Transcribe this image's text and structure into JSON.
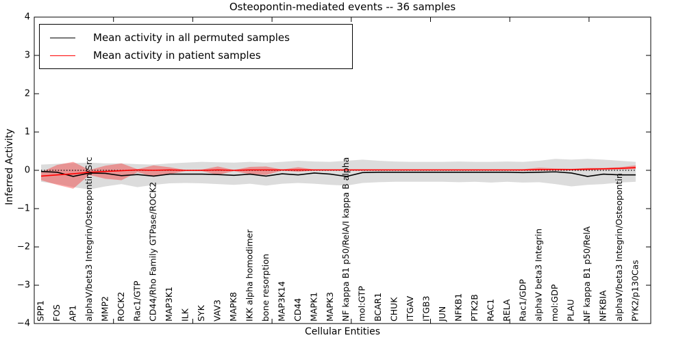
{
  "figure": {
    "title": "Osteopontin-mediated events -- 36 samples",
    "xlabel": "Cellular Entities",
    "ylabel": "Inferred Activity"
  },
  "legend": {
    "entries": [
      {
        "label": "Mean activity in all permuted samples",
        "color": "#000000"
      },
      {
        "label": "Mean activity in patient samples",
        "color": "#ff0000"
      }
    ],
    "position": "upper left"
  },
  "colors": {
    "permuted_line": "#000000",
    "patient_line": "#ff0000",
    "permuted_band": "rgba(128,128,128,0.28)",
    "patient_band": "rgba(255,0,0,0.33)",
    "zero_line": "#000000",
    "background": "#ffffff"
  },
  "chart_data": {
    "type": "line",
    "title": "Osteopontin-mediated events -- 36 samples",
    "xlabel": "Cellular Entities",
    "ylabel": "Inferred Activity",
    "ylim": [
      -4,
      4
    ],
    "yticks": [
      4,
      3,
      2,
      1,
      0,
      -1,
      -2,
      -3,
      -4
    ],
    "grid": false,
    "legend_position": "upper left",
    "zero_reference_line": {
      "value": 0,
      "style": "dotted",
      "color": "#000000"
    },
    "categories": [
      "SPP1",
      "FOS",
      "AP1",
      "alphaV/beta3 Integrin/Osteopontin/Src",
      "MMP2",
      "ROCK2",
      "Rac1/GTP",
      "CD44/Rho Family GTPase/ROCK2",
      "MAP3K1",
      "ILK",
      "SYK",
      "VAV3",
      "MAPK8",
      "IKK alpha homodimer",
      "bone resorption",
      "MAP3K14",
      "CD44",
      "MAPK1",
      "MAPK3",
      "NF kappa B1 p50/RelA/I kappa B alpha",
      "mol:GTP",
      "BCAR1",
      "CHUK",
      "ITGAV",
      "ITGB3",
      "JUN",
      "NFKB1",
      "PTK2B",
      "RAC1",
      "RELA",
      "Rac1/GDP",
      "alphaV beta3 Integrin",
      "mol:GDP",
      "PLAU",
      "NF kappa B1 p50/RelA",
      "NFKBIA",
      "alphaV/beta3 Integrin/Osteopontin",
      "PYK2/p130Cas"
    ],
    "series": [
      {
        "name": "Mean activity in all permuted samples",
        "color": "#000000",
        "style": "solid",
        "values": [
          -0.03,
          -0.05,
          -0.16,
          -0.07,
          -0.08,
          -0.14,
          -0.11,
          -0.15,
          -0.1,
          -0.1,
          -0.1,
          -0.11,
          -0.13,
          -0.1,
          -0.15,
          -0.09,
          -0.12,
          -0.07,
          -0.1,
          -0.16,
          -0.06,
          -0.05,
          -0.05,
          -0.05,
          -0.05,
          -0.05,
          -0.05,
          -0.05,
          -0.05,
          -0.05,
          -0.06,
          -0.05,
          -0.04,
          -0.07,
          -0.16,
          -0.1,
          -0.12,
          -0.12
        ]
      },
      {
        "name": "Mean activity in patient samples",
        "color": "#ff0000",
        "style": "solid",
        "values": [
          -0.15,
          -0.12,
          -0.09,
          -0.05,
          -0.03,
          -0.01,
          0.01,
          0.0,
          0.01,
          0.0,
          0.0,
          0.01,
          0.0,
          0.01,
          0.01,
          0.01,
          0.01,
          0.01,
          0.01,
          0.01,
          0.01,
          0.01,
          0.01,
          0.01,
          0.01,
          0.01,
          0.01,
          0.01,
          0.01,
          0.01,
          0.01,
          0.02,
          0.02,
          0.02,
          0.03,
          0.04,
          0.05,
          0.07
        ]
      }
    ],
    "bands": [
      {
        "name": "permuted-range",
        "color": "rgba(128,128,128,0.28)",
        "upper": [
          0.15,
          0.17,
          0.19,
          0.2,
          0.18,
          0.18,
          0.16,
          0.15,
          0.18,
          0.2,
          0.22,
          0.21,
          0.2,
          0.22,
          0.2,
          0.22,
          0.25,
          0.23,
          0.22,
          0.25,
          0.28,
          0.25,
          0.23,
          0.22,
          0.22,
          0.22,
          0.23,
          0.22,
          0.22,
          0.23,
          0.22,
          0.25,
          0.3,
          0.28,
          0.3,
          0.28,
          0.25,
          0.22
        ],
        "lower": [
          -0.3,
          -0.36,
          -0.44,
          -0.5,
          -0.42,
          -0.36,
          -0.44,
          -0.38,
          -0.34,
          -0.33,
          -0.34,
          -0.36,
          -0.38,
          -0.35,
          -0.4,
          -0.35,
          -0.33,
          -0.35,
          -0.38,
          -0.4,
          -0.33,
          -0.31,
          -0.3,
          -0.3,
          -0.3,
          -0.3,
          -0.31,
          -0.3,
          -0.32,
          -0.3,
          -0.32,
          -0.31,
          -0.36,
          -0.42,
          -0.38,
          -0.36,
          -0.32,
          -0.3
        ]
      },
      {
        "name": "patient-range",
        "color": "rgba(255,0,0,0.33)",
        "upper": [
          -0.05,
          0.14,
          0.22,
          0.01,
          0.12,
          0.18,
          0.03,
          0.13,
          0.08,
          0.01,
          0.02,
          0.1,
          0.01,
          0.09,
          0.1,
          0.02,
          0.08,
          0.02,
          0.02,
          0.02,
          0.02,
          0.02,
          0.02,
          0.02,
          0.02,
          0.02,
          0.02,
          0.02,
          0.02,
          0.02,
          0.03,
          0.07,
          0.05,
          0.04,
          0.06,
          0.06,
          0.08,
          0.13
        ],
        "lower": [
          -0.26,
          -0.38,
          -0.48,
          -0.12,
          -0.22,
          -0.26,
          -0.05,
          -0.17,
          -0.1,
          -0.02,
          -0.02,
          -0.12,
          -0.02,
          -0.1,
          -0.12,
          -0.01,
          -0.04,
          -0.005,
          -0.005,
          -0.005,
          -0.005,
          -0.005,
          -0.005,
          -0.005,
          -0.005,
          -0.005,
          -0.005,
          -0.005,
          -0.005,
          -0.005,
          -0.01,
          -0.01,
          -0.005,
          0.0,
          0.0,
          0.01,
          0.02,
          0.03
        ]
      }
    ]
  }
}
